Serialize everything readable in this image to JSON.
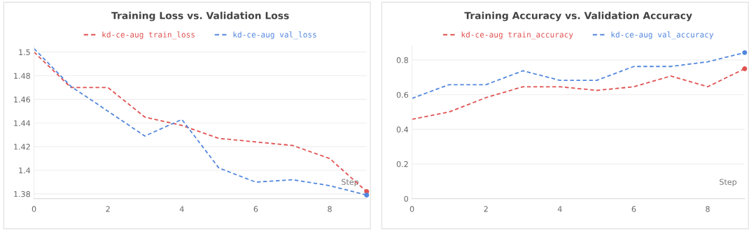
{
  "chart_data": [
    {
      "type": "line",
      "title": "Training Loss vs. Validation Loss",
      "xlabel": "Step",
      "x": [
        0,
        1,
        2,
        3,
        4,
        5,
        6,
        7,
        8,
        9
      ],
      "series": [
        {
          "name": "kd-ce-aug train_loss",
          "color": "#e05252",
          "values": [
            1.5,
            1.47,
            1.47,
            1.445,
            1.438,
            1.427,
            1.424,
            1.421,
            1.41,
            1.382
          ]
        },
        {
          "name": "kd-ce-aug val_loss",
          "color": "#5387dd",
          "values": [
            1.503,
            1.471,
            1.45,
            1.429,
            1.443,
            1.402,
            1.39,
            1.392,
            1.387,
            1.379
          ]
        }
      ],
      "xlim": [
        0,
        9
      ],
      "xticks": [
        0,
        2,
        4,
        6,
        8
      ],
      "ylim": [
        1.376,
        1.505
      ],
      "yticks": [
        1.38,
        {
          "value": 1.4,
          "label": "1.4"
        },
        1.42,
        1.44,
        1.46,
        1.48,
        {
          "value": 1.5,
          "label": "1.5"
        }
      ],
      "grid": "y",
      "legend": "top",
      "line_style": "dashed"
    },
    {
      "type": "line",
      "title": "Training Accuracy vs. Validation Accuracy",
      "xlabel": "Step",
      "x": [
        0,
        1,
        2,
        3,
        4,
        5,
        6,
        7,
        8,
        9
      ],
      "series": [
        {
          "name": "kd-ce-aug train_accuracy",
          "color": "#e05252",
          "values": [
            0.458,
            0.5,
            0.583,
            0.646,
            0.646,
            0.625,
            0.646,
            0.708,
            0.646,
            0.75
          ]
        },
        {
          "name": "kd-ce-aug val_accuracy",
          "color": "#5387dd",
          "values": [
            0.579,
            0.658,
            0.658,
            0.738,
            0.683,
            0.683,
            0.763,
            0.763,
            0.79,
            0.843
          ]
        }
      ],
      "xlim": [
        0,
        9
      ],
      "xticks": [
        0,
        2,
        4,
        6,
        8
      ],
      "ylim": [
        0,
        0.88
      ],
      "yticks": [
        0,
        0.2,
        0.4,
        0.6,
        0.8
      ],
      "grid": "y",
      "legend": "top",
      "line_style": "dashed"
    }
  ]
}
